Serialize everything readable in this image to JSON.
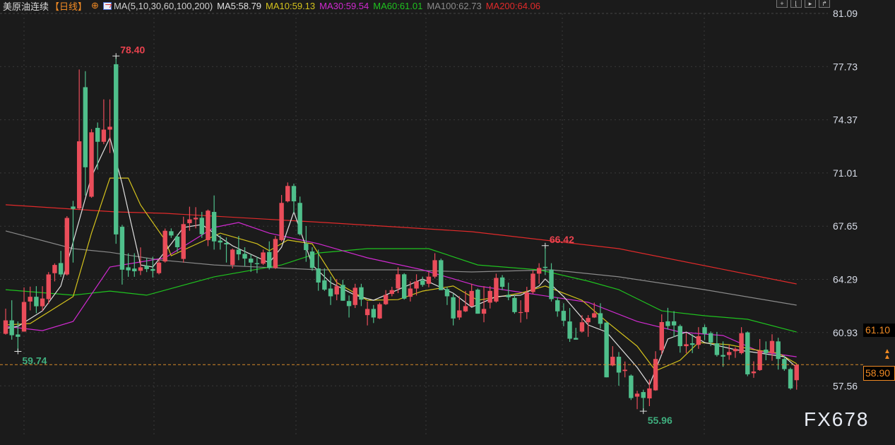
{
  "header": {
    "title": "美原油连续",
    "period": "【日线】",
    "add_icon": "circle-plus-icon",
    "ma_icon": "indicator-chart-icon",
    "ma_params": "MA(5,10,30,60,100,200)",
    "ma_values": [
      {
        "label": "MA5:58.79",
        "color": "#e0e0e0"
      },
      {
        "label": "MA10:59.13",
        "color": "#d4c21c"
      },
      {
        "label": "MA30:59.54",
        "color": "#d02ad0"
      },
      {
        "label": "MA60:61.01",
        "color": "#1fc21f"
      },
      {
        "label": "MA100:62.73",
        "color": "#8a8a8a"
      },
      {
        "label": "MA200:64.06",
        "color": "#e02a2a"
      }
    ]
  },
  "toolbar": {
    "icons": [
      "crosshair-icon",
      "zoom-in-icon",
      "zoom-out-icon",
      "move-right-icon"
    ]
  },
  "watermark": "FX678",
  "price_boxes": {
    "level": "61.10",
    "current": "58.90"
  },
  "chart_data": {
    "type": "candlestick",
    "y_ticks": [
      "81.09",
      "77.73",
      "74.37",
      "71.01",
      "67.65",
      "64.29",
      "60.93",
      "57.56"
    ],
    "ylim": [
      57.56,
      81.09
    ],
    "grid": true,
    "colors": {
      "up": "#ea4d5a",
      "down": "#4fbf8b"
    },
    "current_price": 58.9,
    "annotations": [
      {
        "text": "78.40",
        "candle": 19,
        "value": 78.4,
        "kind": "high",
        "color": "#e8424e"
      },
      {
        "text": "59.74",
        "candle": 3,
        "value": 59.74,
        "kind": "low",
        "color": "#3fae7e"
      },
      {
        "text": "66.42",
        "candle": 89,
        "value": 66.42,
        "kind": "high",
        "color": "#e8424e"
      },
      {
        "text": "55.96",
        "candle": 105,
        "value": 55.96,
        "kind": "low",
        "color": "#3fae7e"
      }
    ],
    "candles_ohlc": [
      [
        60.85,
        62.44,
        60.8,
        61.7
      ],
      [
        61.7,
        62.97,
        60.48,
        60.76
      ],
      [
        60.81,
        61.63,
        59.74,
        60.66
      ],
      [
        60.99,
        63.78,
        60.99,
        62.86
      ],
      [
        62.89,
        63.83,
        62.33,
        63.19
      ],
      [
        63.19,
        63.86,
        62.15,
        62.59
      ],
      [
        62.59,
        63.86,
        62.3,
        63.08
      ],
      [
        63.04,
        64.75,
        62.74,
        64.6
      ],
      [
        64.68,
        65.3,
        64.16,
        65.2
      ],
      [
        65.32,
        66.09,
        64.45,
        64.6
      ],
      [
        64.6,
        68.28,
        64.53,
        68.17
      ],
      [
        68.89,
        69.25,
        65.35,
        68.74
      ],
      [
        68.77,
        77.55,
        68.69,
        73.01
      ],
      [
        76.43,
        77.44,
        69.59,
        71.37
      ],
      [
        69.51,
        73.78,
        69.44,
        73.58
      ],
      [
        73.86,
        74.2,
        71.22,
        72.98
      ],
      [
        72.98,
        75.66,
        72.83,
        73.75
      ],
      [
        73.75,
        75.66,
        72.27,
        73.93
      ],
      [
        77.88,
        78.4,
        66.54,
        67.13
      ],
      [
        67.61,
        67.73,
        63.96,
        64.9
      ],
      [
        65.05,
        65.94,
        64.45,
        64.86
      ],
      [
        64.97,
        65.94,
        64.45,
        64.8
      ],
      [
        64.83,
        66.31,
        64.56,
        65.05
      ],
      [
        65.15,
        65.64,
        64.75,
        64.94
      ],
      [
        64.94,
        65.72,
        64.41,
        64.83
      ],
      [
        64.68,
        65.57,
        64.6,
        65.35
      ],
      [
        65.42,
        67.5,
        65.35,
        67.36
      ],
      [
        67.33,
        67.51,
        66.91,
        67.06
      ],
      [
        66.99,
        67.14,
        66.02,
        66.32
      ],
      [
        65.58,
        68.25,
        65.35,
        67.78
      ],
      [
        67.84,
        68.88,
        67.36,
        68.08
      ],
      [
        68.08,
        68.85,
        67.51,
        68.18
      ],
      [
        68.18,
        68.55,
        66.91,
        67.14
      ],
      [
        66.77,
        68.7,
        66.39,
        68.63
      ],
      [
        68.55,
        69.59,
        66.17,
        66.69
      ],
      [
        66.74,
        67.06,
        66.17,
        66.62
      ],
      [
        66.59,
        66.94,
        65.35,
        66.5
      ],
      [
        65.2,
        66.24,
        64.98,
        66.17
      ],
      [
        66.17,
        67.03,
        65.5,
        65.87
      ],
      [
        65.9,
        66.32,
        65.13,
        65.6
      ],
      [
        65.6,
        65.87,
        64.76,
        65.35
      ],
      [
        65.31,
        65.72,
        64.68,
        65.25
      ],
      [
        65.28,
        66.17,
        65.2,
        65.99
      ],
      [
        66.02,
        66.69,
        64.91,
        65.01
      ],
      [
        65.01,
        67.03,
        64.95,
        66.84
      ],
      [
        66.77,
        69.62,
        66.69,
        69.12
      ],
      [
        69.22,
        70.41,
        69.15,
        70.19
      ],
      [
        70.19,
        70.34,
        68.48,
        69.22
      ],
      [
        69.12,
        69.52,
        67.06,
        67.14
      ],
      [
        66.54,
        67.66,
        65.4,
        66.14
      ],
      [
        66.05,
        66.32,
        64.83,
        65.01
      ],
      [
        64.98,
        66.17,
        63.57,
        64.09
      ],
      [
        64.23,
        64.98,
        63.56,
        63.64
      ],
      [
        63.71,
        64.46,
        62.67,
        63.22
      ],
      [
        63.34,
        64.31,
        62.97,
        63.86
      ],
      [
        63.94,
        64.26,
        62.94,
        62.94
      ],
      [
        62.92,
        63.27,
        61.88,
        62.6
      ],
      [
        62.67,
        64.01,
        62.48,
        63.76
      ],
      [
        63.79,
        64.01,
        62.6,
        63.01
      ],
      [
        62.03,
        62.89,
        61.38,
        62.42
      ],
      [
        62.42,
        62.67,
        61.53,
        61.88
      ],
      [
        61.82,
        62.82,
        61.78,
        62.72
      ],
      [
        62.72,
        63.61,
        62.67,
        63.31
      ],
      [
        63.37,
        63.82,
        63.22,
        63.61
      ],
      [
        63.71,
        65.05,
        63.42,
        64.61
      ],
      [
        64.61,
        64.68,
        63.01,
        63.07
      ],
      [
        63.19,
        64.16,
        62.89,
        63.71
      ],
      [
        63.71,
        64.61,
        63.27,
        64.16
      ],
      [
        64.23,
        64.46,
        63.82,
        63.94
      ],
      [
        64.01,
        64.75,
        63.79,
        64.46
      ],
      [
        64.46,
        65.94,
        64.35,
        65.5
      ],
      [
        65.5,
        65.6,
        63.61,
        63.61
      ],
      [
        63.67,
        63.82,
        62.67,
        63.22
      ],
      [
        63.16,
        63.37,
        61.38,
        61.82
      ],
      [
        61.88,
        63.22,
        61.73,
        62.33
      ],
      [
        62.27,
        63.56,
        62.22,
        62.6
      ],
      [
        62.6,
        64.01,
        62.57,
        63.56
      ],
      [
        63.64,
        63.71,
        62.12,
        62.12
      ],
      [
        62.12,
        63.86,
        61.58,
        62.42
      ],
      [
        62.82,
        63.86,
        62.45,
        63.56
      ],
      [
        62.89,
        64.65,
        62.82,
        64.38
      ],
      [
        64.41,
        64.56,
        63.61,
        63.82
      ],
      [
        63.31,
        64.08,
        62.97,
        63.16
      ],
      [
        63.12,
        63.31,
        62.12,
        62.22
      ],
      [
        62.18,
        62.97,
        61.56,
        62.22
      ],
      [
        62.22,
        63.82,
        61.78,
        63.46
      ],
      [
        63.49,
        64.86,
        63.37,
        64.65
      ],
      [
        64.65,
        65.31,
        64.01,
        65.01
      ],
      [
        65.08,
        66.42,
        64.56,
        65.01
      ],
      [
        64.9,
        65.31,
        62.89,
        63.04
      ],
      [
        62.97,
        63.16,
        61.93,
        62.27
      ],
      [
        62.3,
        62.78,
        61.33,
        61.67
      ],
      [
        61.63,
        62.48,
        60.34,
        60.54
      ],
      [
        60.59,
        61.23,
        60.48,
        60.48
      ],
      [
        60.99,
        62.03,
        60.93,
        61.58
      ],
      [
        61.58,
        62.03,
        60.66,
        61.85
      ],
      [
        61.88,
        62.82,
        61.85,
        62.15
      ],
      [
        62.15,
        62.78,
        61.18,
        61.48
      ],
      [
        61.56,
        61.58,
        58.1,
        58.1
      ],
      [
        58.85,
        60.07,
        58.8,
        59.4
      ],
      [
        59.4,
        59.7,
        57.57,
        58.4
      ],
      [
        58.5,
        59.1,
        58.1,
        58.58
      ],
      [
        58.21,
        58.28,
        56.67,
        56.79
      ],
      [
        56.88,
        57.25,
        56.09,
        57.07
      ],
      [
        57.17,
        57.32,
        55.96,
        56.8
      ],
      [
        56.77,
        57.96,
        56.28,
        57.4
      ],
      [
        57.28,
        59.75,
        57.25,
        59.26
      ],
      [
        59.81,
        62.08,
        59.55,
        61.59
      ],
      [
        61.64,
        62.49,
        61.12,
        61.34
      ],
      [
        61.64,
        62.28,
        60.64,
        61.38
      ],
      [
        61.34,
        61.44,
        59.66,
        60.07
      ],
      [
        60.07,
        60.89,
        59.63,
        60.19
      ],
      [
        60.25,
        60.82,
        59.63,
        60.15
      ],
      [
        60.15,
        61.27,
        59.9,
        60.7
      ],
      [
        61.27,
        61.44,
        60.45,
        60.85
      ],
      [
        60.89,
        61.0,
        60.07,
        60.3
      ],
      [
        60.25,
        60.97,
        59.41,
        59.51
      ],
      [
        59.51,
        60.37,
        58.77,
        59.41
      ],
      [
        59.51,
        60.15,
        59.21,
        59.7
      ],
      [
        59.75,
        60.0,
        59.33,
        59.9
      ],
      [
        59.63,
        61.27,
        59.55,
        60.89
      ],
      [
        60.94,
        61.0,
        58.17,
        58.29
      ],
      [
        58.36,
        59.11,
        58.07,
        58.47
      ],
      [
        58.56,
        60.52,
        58.51,
        59.78
      ],
      [
        59.85,
        60.37,
        59.18,
        59.63
      ],
      [
        59.63,
        60.82,
        59.15,
        60.4
      ],
      [
        60.37,
        60.6,
        58.59,
        59.26
      ],
      [
        59.26,
        59.48,
        58.51,
        58.62
      ],
      [
        58.62,
        58.71,
        57.32,
        57.4
      ],
      [
        57.92,
        58.96,
        57.32,
        58.9
      ]
    ],
    "moving_averages": [
      {
        "name": "MA200",
        "color": "#e02a2a",
        "points": [
          [
            1,
            69.0
          ],
          [
            19,
            68.55
          ],
          [
            27,
            68.46
          ],
          [
            53,
            67.88
          ],
          [
            77,
            67.3
          ],
          [
            101,
            66.23
          ],
          [
            130,
            64.0
          ]
        ]
      },
      {
        "name": "MA100",
        "color": "#8a8a8a",
        "points": [
          [
            1,
            67.35
          ],
          [
            12,
            66.23
          ],
          [
            18,
            66.0
          ],
          [
            26,
            65.52
          ],
          [
            35,
            65.2
          ],
          [
            52,
            64.89
          ],
          [
            65,
            64.89
          ],
          [
            77,
            64.76
          ],
          [
            90,
            64.89
          ],
          [
            101,
            64.45
          ],
          [
            115,
            63.64
          ],
          [
            130,
            62.66
          ]
        ]
      },
      {
        "name": "MA60",
        "color": "#1fc21f",
        "points": [
          [
            1,
            63.64
          ],
          [
            12,
            63.29
          ],
          [
            18,
            63.55
          ],
          [
            24,
            63.29
          ],
          [
            35,
            64.45
          ],
          [
            46,
            65.2
          ],
          [
            52,
            65.96
          ],
          [
            60,
            66.23
          ],
          [
            70,
            66.23
          ],
          [
            78,
            65.2
          ],
          [
            88,
            64.89
          ],
          [
            96,
            64.18
          ],
          [
            101,
            63.64
          ],
          [
            108,
            62.3
          ],
          [
            115,
            61.99
          ],
          [
            122,
            61.77
          ],
          [
            130,
            60.96
          ]
        ]
      },
      {
        "name": "MA30",
        "color": "#d02ad0",
        "points": [
          [
            1,
            61.32
          ],
          [
            7,
            61.05
          ],
          [
            12,
            61.63
          ],
          [
            18,
            65.07
          ],
          [
            27,
            65.65
          ],
          [
            35,
            67.57
          ],
          [
            39,
            67.88
          ],
          [
            44,
            67.21
          ],
          [
            52,
            66.54
          ],
          [
            60,
            65.65
          ],
          [
            69,
            64.89
          ],
          [
            78,
            63.87
          ],
          [
            86,
            63.42
          ],
          [
            96,
            62.84
          ],
          [
            104,
            61.63
          ],
          [
            111,
            60.96
          ],
          [
            118,
            60.74
          ],
          [
            124,
            59.72
          ],
          [
            130,
            59.4
          ]
        ]
      },
      {
        "name": "MA10",
        "color": "#d4c21c",
        "points": [
          [
            1,
            61.41
          ],
          [
            5,
            61.5
          ],
          [
            12,
            63.2
          ],
          [
            15,
            67.21
          ],
          [
            18,
            70.69
          ],
          [
            21,
            70.69
          ],
          [
            23,
            68.99
          ],
          [
            27,
            66.77
          ],
          [
            28,
            65.78
          ],
          [
            31,
            66.32
          ],
          [
            36,
            67.21
          ],
          [
            42,
            66.54
          ],
          [
            44,
            66.1
          ],
          [
            47,
            66.77
          ],
          [
            51,
            66.54
          ],
          [
            55,
            64.09
          ],
          [
            60,
            62.97
          ],
          [
            65,
            63.01
          ],
          [
            69,
            63.55
          ],
          [
            74,
            63.87
          ],
          [
            78,
            62.97
          ],
          [
            85,
            63.42
          ],
          [
            89,
            63.87
          ],
          [
            95,
            62.97
          ],
          [
            99,
            61.63
          ],
          [
            104,
            60.07
          ],
          [
            107,
            58.51
          ],
          [
            111,
            59.18
          ],
          [
            114,
            60.3
          ],
          [
            119,
            60.16
          ],
          [
            123,
            59.85
          ],
          [
            127,
            59.63
          ],
          [
            130,
            58.96
          ]
        ]
      },
      {
        "name": "MA5",
        "color": "#e0e0e0",
        "points": [
          [
            1,
            61.19
          ],
          [
            3,
            61.32
          ],
          [
            7,
            62.3
          ],
          [
            10,
            63.87
          ],
          [
            15,
            70.78
          ],
          [
            18,
            73.24
          ],
          [
            20,
            70.33
          ],
          [
            23,
            65.2
          ],
          [
            25,
            65.07
          ],
          [
            28,
            66.54
          ],
          [
            30,
            67.57
          ],
          [
            33,
            67.75
          ],
          [
            35,
            67.21
          ],
          [
            38,
            66.41
          ],
          [
            44,
            65.34
          ],
          [
            46,
            66.32
          ],
          [
            48,
            68.55
          ],
          [
            51,
            65.2
          ],
          [
            54,
            64.09
          ],
          [
            58,
            63.29
          ],
          [
            61,
            62.97
          ],
          [
            65,
            63.64
          ],
          [
            69,
            64.31
          ],
          [
            74,
            63.42
          ],
          [
            77,
            62.53
          ],
          [
            81,
            63.2
          ],
          [
            85,
            63.29
          ],
          [
            88,
            63.87
          ],
          [
            89,
            64.31
          ],
          [
            92,
            63.2
          ],
          [
            96,
            61.41
          ],
          [
            99,
            60.96
          ],
          [
            104,
            58.73
          ],
          [
            106,
            57.62
          ],
          [
            109,
            60.52
          ],
          [
            112,
            60.96
          ],
          [
            115,
            60.3
          ],
          [
            120,
            59.85
          ],
          [
            124,
            59.63
          ],
          [
            128,
            59.4
          ],
          [
            130,
            58.73
          ]
        ]
      }
    ]
  }
}
